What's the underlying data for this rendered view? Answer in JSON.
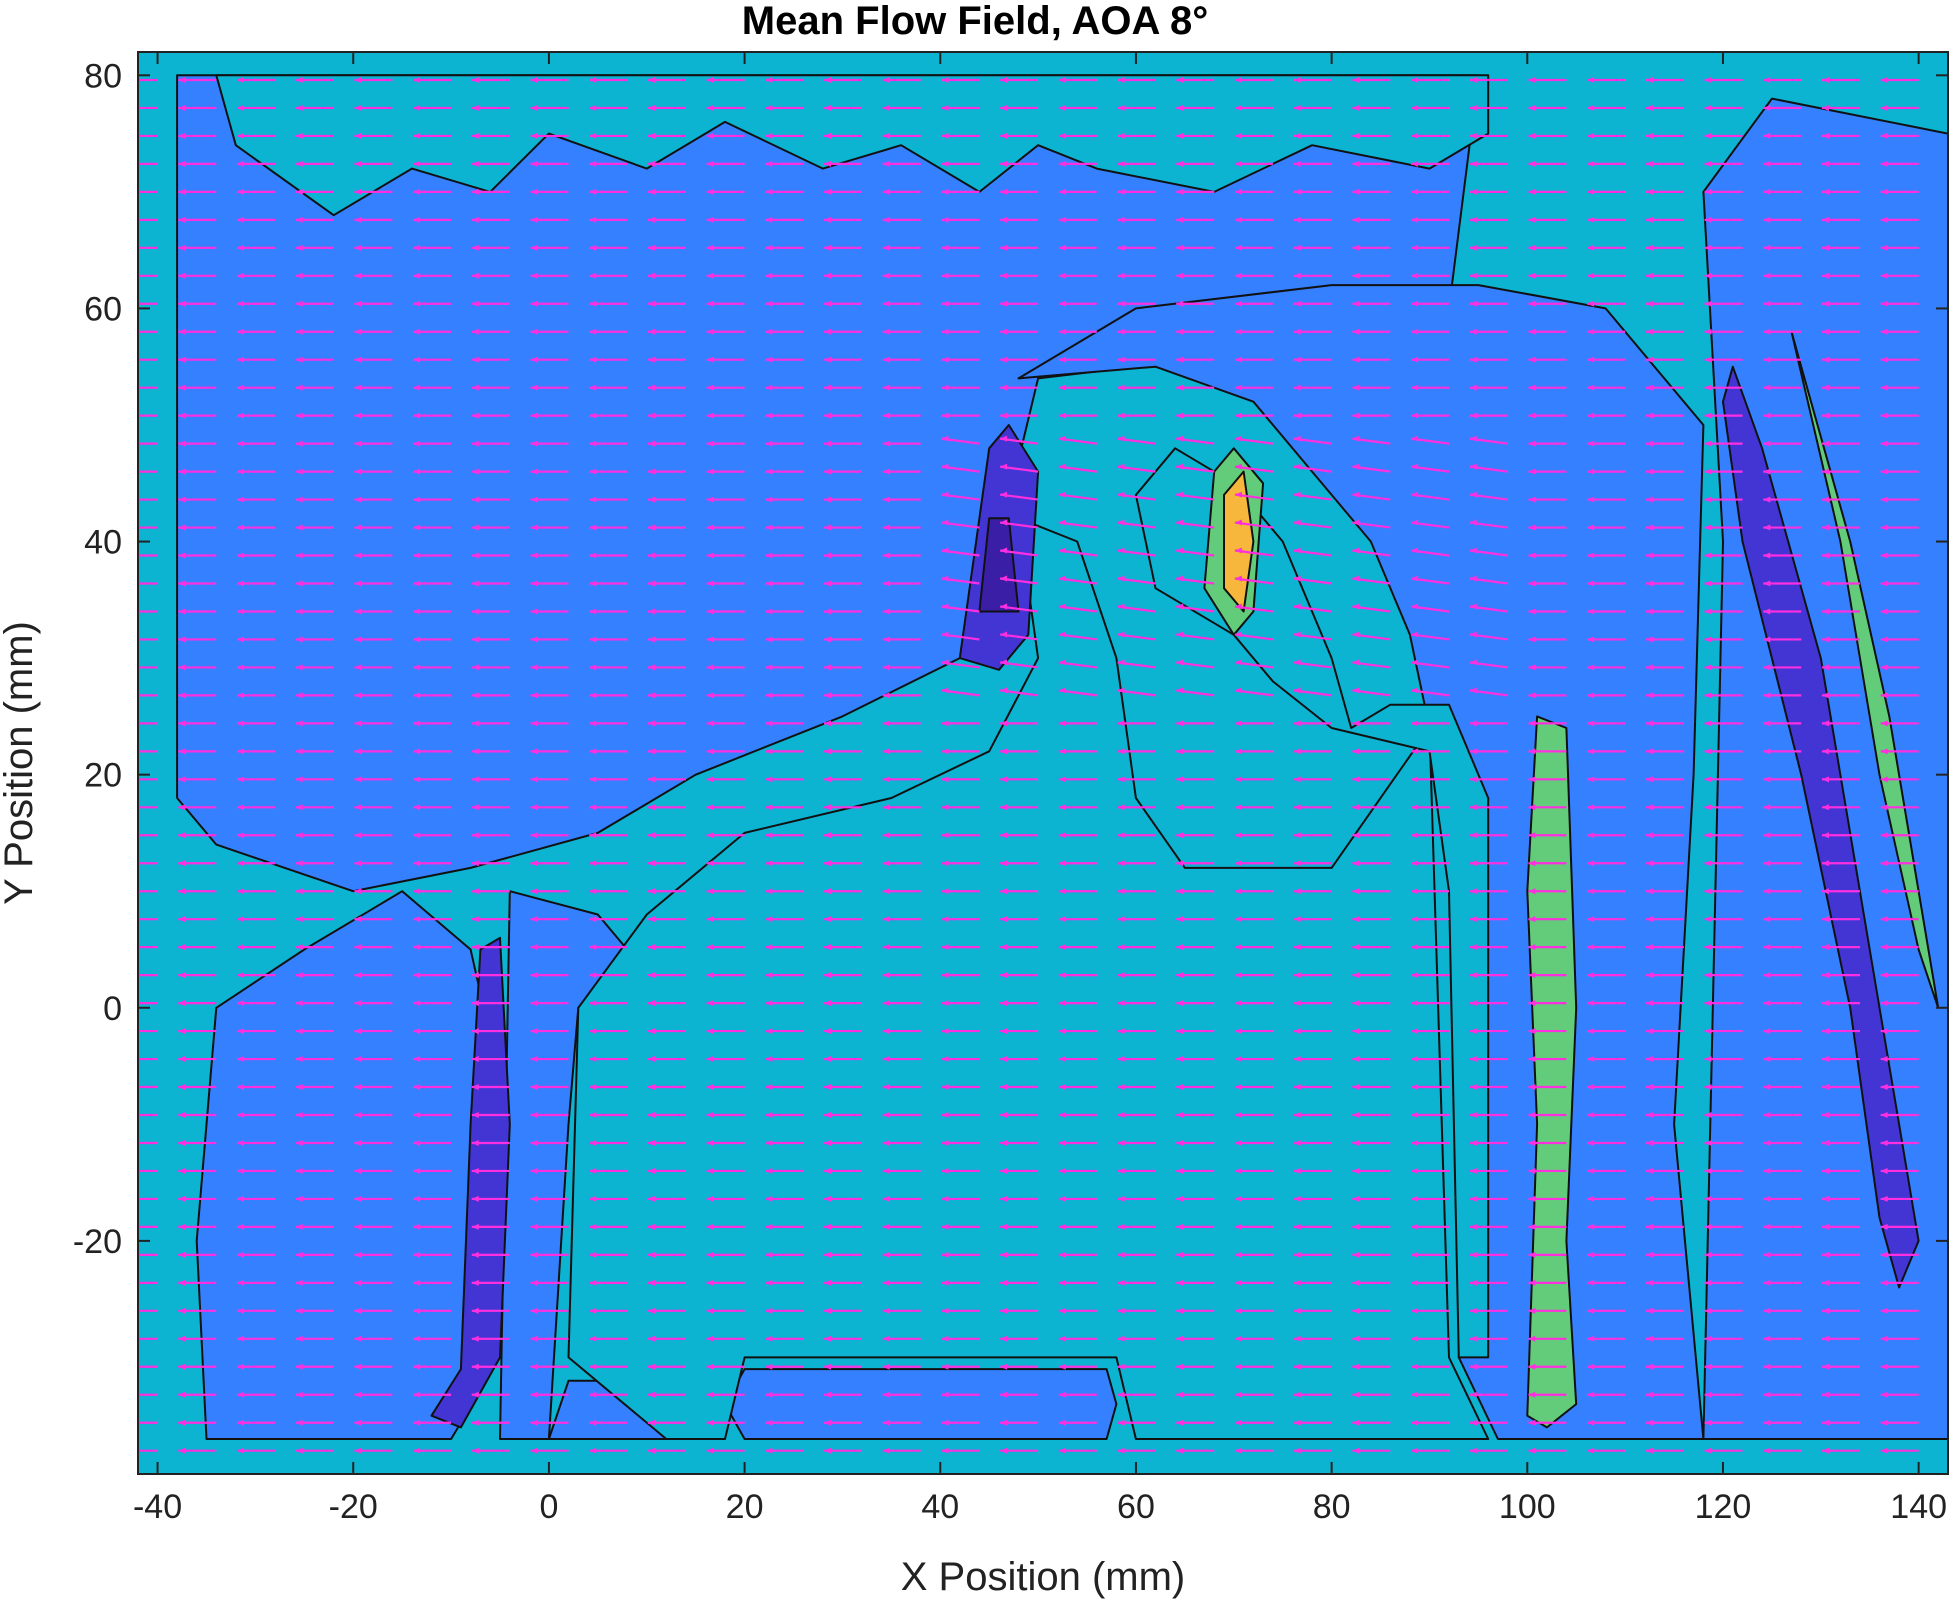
{
  "chart_data": {
    "type": "contour",
    "title": "Mean Flow Field, AOA 8°",
    "xlabel": "X Position (mm)",
    "ylabel": "Y Position (mm)",
    "xlim": [
      -42,
      143
    ],
    "ylim": [
      -40,
      82
    ],
    "xticks": [
      -40,
      -20,
      0,
      20,
      40,
      60,
      80,
      100,
      120,
      140
    ],
    "yticks": [
      -20,
      0,
      20,
      40,
      60,
      80
    ],
    "grid": false,
    "colors": {
      "level_background": "#0cb4d2",
      "level_low": "#3580ff",
      "level_lower": "#4335d4",
      "level_lowest": "#3a1fa6",
      "level_high": "#63cc7b",
      "level_peak": "#f6b73c",
      "vector": "#ff2fe0"
    },
    "regions": [
      {
        "level": "low",
        "points": [
          [
            -38,
            80
          ],
          [
            95,
            80
          ],
          [
            92,
            60
          ],
          [
            78,
            56
          ],
          [
            60,
            55
          ],
          [
            50,
            54
          ],
          [
            46,
            40
          ],
          [
            42,
            30
          ],
          [
            30,
            25
          ],
          [
            15,
            20
          ],
          [
            5,
            15
          ],
          [
            -8,
            12
          ],
          [
            -20,
            10
          ],
          [
            -34,
            14
          ],
          [
            -38,
            18
          ]
        ]
      },
      {
        "level": "low",
        "points": [
          [
            -35,
            -37
          ],
          [
            -10,
            -37
          ],
          [
            -5,
            -30
          ],
          [
            -4,
            -10
          ],
          [
            -8,
            5
          ],
          [
            -15,
            10
          ],
          [
            -25,
            5
          ],
          [
            -34,
            0
          ],
          [
            -36,
            -20
          ]
        ]
      },
      {
        "level": "low",
        "points": [
          [
            -5,
            -37
          ],
          [
            0,
            -37
          ],
          [
            2,
            -10
          ],
          [
            3,
            0
          ],
          [
            8,
            5
          ],
          [
            5,
            8
          ],
          [
            -4,
            10
          ]
        ]
      },
      {
        "level": "low",
        "points": [
          [
            0,
            -37
          ],
          [
            12,
            -37
          ],
          [
            8,
            -32
          ],
          [
            2,
            -32
          ]
        ]
      },
      {
        "level": "low",
        "points": [
          [
            20,
            -37
          ],
          [
            57,
            -37
          ],
          [
            58,
            -34
          ],
          [
            57,
            -31
          ],
          [
            20,
            -31
          ],
          [
            18,
            -34
          ]
        ]
      },
      {
        "level": "low",
        "points": [
          [
            14,
            -37
          ],
          [
            17,
            -34
          ],
          [
            14,
            -31
          ],
          [
            11,
            -34
          ]
        ]
      },
      {
        "level": "low",
        "points": [
          [
            48,
            54
          ],
          [
            62,
            55
          ],
          [
            72,
            52
          ],
          [
            78,
            46
          ],
          [
            84,
            40
          ],
          [
            88,
            32
          ],
          [
            90,
            24
          ],
          [
            96,
            18
          ],
          [
            93,
            -30
          ],
          [
            97,
            -37
          ],
          [
            118,
            -37
          ],
          [
            115,
            -10
          ],
          [
            117,
            20
          ],
          [
            118,
            50
          ],
          [
            108,
            60
          ],
          [
            95,
            62
          ],
          [
            80,
            62
          ],
          [
            60,
            60
          ]
        ]
      },
      {
        "level": "low",
        "points": [
          [
            118,
            -37
          ],
          [
            143,
            -37
          ],
          [
            143,
            75
          ],
          [
            125,
            78
          ],
          [
            118,
            70
          ],
          [
            120,
            40
          ]
        ]
      },
      {
        "level": "background",
        "points": [
          [
            48,
            42
          ],
          [
            54,
            40
          ],
          [
            58,
            30
          ],
          [
            60,
            18
          ],
          [
            65,
            12
          ],
          [
            80,
            12
          ],
          [
            90,
            24
          ],
          [
            92,
            -30
          ],
          [
            96,
            -37
          ],
          [
            60,
            -37
          ],
          [
            58,
            -30
          ],
          [
            20,
            -30
          ],
          [
            18,
            -37
          ],
          [
            12,
            -37
          ],
          [
            2,
            -30
          ],
          [
            3,
            0
          ],
          [
            10,
            8
          ],
          [
            20,
            15
          ],
          [
            35,
            18
          ],
          [
            45,
            22
          ],
          [
            50,
            30
          ]
        ]
      },
      {
        "level": "background",
        "points": [
          [
            60,
            44
          ],
          [
            64,
            48
          ],
          [
            70,
            45
          ],
          [
            75,
            40
          ],
          [
            80,
            30
          ],
          [
            82,
            24
          ],
          [
            86,
            26
          ],
          [
            92,
            26
          ],
          [
            96,
            18
          ],
          [
            96,
            -30
          ],
          [
            93,
            -30
          ],
          [
            92,
            10
          ],
          [
            90,
            22
          ],
          [
            80,
            24
          ],
          [
            74,
            28
          ],
          [
            70,
            32
          ],
          [
            62,
            36
          ]
        ]
      },
      {
        "level": "background",
        "points": [
          [
            -32,
            74
          ],
          [
            -22,
            68
          ],
          [
            -14,
            72
          ],
          [
            -6,
            70
          ],
          [
            0,
            75
          ],
          [
            10,
            72
          ],
          [
            18,
            76
          ],
          [
            28,
            72
          ],
          [
            36,
            74
          ],
          [
            44,
            70
          ],
          [
            50,
            74
          ],
          [
            56,
            72
          ],
          [
            68,
            70
          ],
          [
            78,
            74
          ],
          [
            90,
            72
          ],
          [
            96,
            75
          ],
          [
            96,
            80
          ],
          [
            -34,
            80
          ]
        ]
      },
      {
        "level": "lower",
        "points": [
          [
            42,
            30
          ],
          [
            45,
            48
          ],
          [
            47,
            50
          ],
          [
            50,
            46
          ],
          [
            49,
            32
          ],
          [
            46,
            29
          ]
        ]
      },
      {
        "level": "lowest",
        "points": [
          [
            44,
            34
          ],
          [
            45,
            42
          ],
          [
            47,
            42
          ],
          [
            48,
            34
          ]
        ]
      },
      {
        "level": "lower",
        "points": [
          [
            -12,
            -35
          ],
          [
            -9,
            -31
          ],
          [
            -8,
            -10
          ],
          [
            -7,
            5
          ],
          [
            -5,
            6
          ],
          [
            -4,
            -10
          ],
          [
            -5,
            -30
          ],
          [
            -9,
            -36
          ]
        ]
      },
      {
        "level": "lower",
        "points": [
          [
            121,
            55
          ],
          [
            124,
            48
          ],
          [
            130,
            30
          ],
          [
            134,
            10
          ],
          [
            138,
            -10
          ],
          [
            140,
            -20
          ],
          [
            138,
            -24
          ],
          [
            136,
            -18
          ],
          [
            133,
            0
          ],
          [
            128,
            20
          ],
          [
            122,
            40
          ],
          [
            120,
            52
          ]
        ]
      },
      {
        "level": "high",
        "points": [
          [
            100,
            -35
          ],
          [
            101,
            -10
          ],
          [
            100,
            10
          ],
          [
            101,
            25
          ],
          [
            104,
            24
          ],
          [
            105,
            0
          ],
          [
            104,
            -20
          ],
          [
            105,
            -34
          ],
          [
            102,
            -36
          ]
        ]
      },
      {
        "level": "high",
        "points": [
          [
            127,
            58
          ],
          [
            132,
            40
          ],
          [
            136,
            20
          ],
          [
            140,
            5
          ],
          [
            142,
            0
          ],
          [
            140,
            10
          ],
          [
            137,
            25
          ],
          [
            133,
            40
          ],
          [
            129,
            52
          ]
        ]
      },
      {
        "level": "high",
        "points": [
          [
            67,
            36
          ],
          [
            68,
            46
          ],
          [
            70,
            48
          ],
          [
            73,
            45
          ],
          [
            72,
            34
          ],
          [
            70,
            32
          ]
        ]
      },
      {
        "level": "peak",
        "points": [
          [
            69,
            36
          ],
          [
            69,
            44
          ],
          [
            71,
            46
          ],
          [
            72,
            40
          ],
          [
            71,
            34
          ]
        ]
      }
    ],
    "vector_field": {
      "x_range": [
        -40,
        140
      ],
      "y_range": [
        -38,
        80
      ],
      "x_step": 6,
      "y_step": 2.4,
      "dominant_direction": "leftward",
      "region_of_upward_deflection": {
        "x": [
          40,
          100
        ],
        "y": [
          25,
          50
        ]
      }
    }
  }
}
